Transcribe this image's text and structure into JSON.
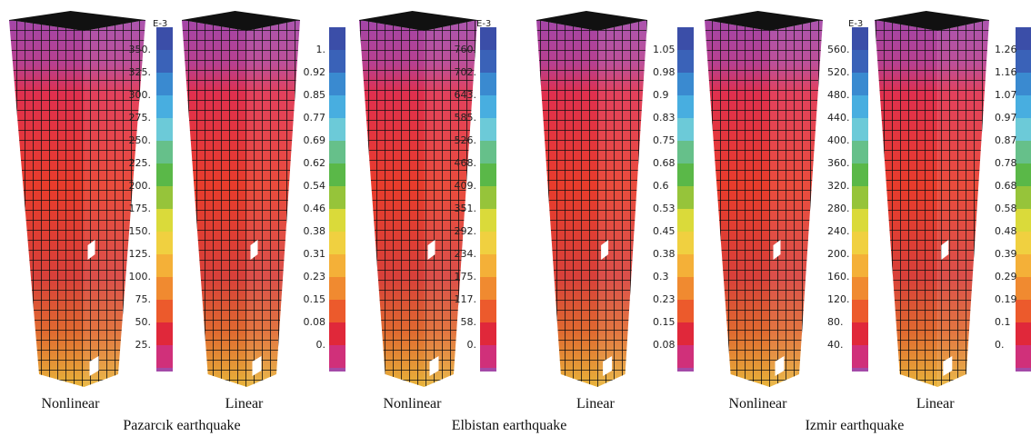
{
  "groups": [
    {
      "caption": "Pazarcık earthquake",
      "panels": [
        {
          "label": "Nonlinear",
          "scale_note": "E-3",
          "ticks": [
            "350.",
            "325.",
            "300.",
            "275.",
            "250.",
            "225.",
            "200.",
            "175.",
            "150.",
            "125.",
            "100.",
            "75.",
            "50.",
            "25."
          ]
        },
        {
          "label": "Linear",
          "ticks": [
            "1.",
            "0.92",
            "0.85",
            "0.77",
            "0.69",
            "0.62",
            "0.54",
            "0.46",
            "0.38",
            "0.31",
            "0.23",
            "0.15",
            "0.08",
            "0."
          ]
        }
      ]
    },
    {
      "caption": "Elbistan earthquake",
      "panels": [
        {
          "label": "Nonlinear",
          "scale_note": "E-3",
          "ticks": [
            "760.",
            "702.",
            "643.",
            "585.",
            "526.",
            "468.",
            "409.",
            "351.",
            "292.",
            "234.",
            "175.",
            "117.",
            "58.",
            "0."
          ]
        },
        {
          "label": "Linear",
          "ticks": [
            "1.05",
            "0.98",
            "0.9",
            "0.83",
            "0.75",
            "0.68",
            "0.6",
            "0.53",
            "0.45",
            "0.38",
            "0.3",
            "0.23",
            "0.15",
            "0.08"
          ]
        }
      ]
    },
    {
      "caption": "Izmir earthquake",
      "panels": [
        {
          "label": "Nonlinear",
          "scale_note": "E-3",
          "ticks": [
            "560.",
            "520.",
            "480.",
            "440.",
            "400.",
            "360.",
            "320.",
            "280.",
            "240.",
            "200.",
            "160.",
            "120.",
            "80.",
            "40."
          ]
        },
        {
          "label": "Linear",
          "ticks": [
            "1.26",
            "1.16",
            "1.07",
            "0.97",
            "0.87",
            "0.78",
            "0.68",
            "0.58",
            "0.48",
            "0.39",
            "0.29",
            "0.19",
            "0.1",
            "0."
          ]
        }
      ]
    }
  ]
}
